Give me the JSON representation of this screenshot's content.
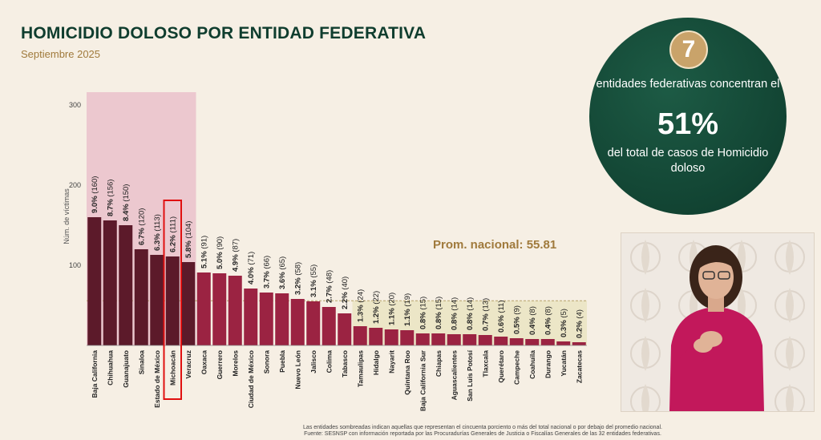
{
  "title": "HOMICIDIO DOLOSO POR ENTIDAD FEDERATIVA",
  "subtitle": "Septiembre 2025",
  "callout": {
    "number": "7",
    "line1": "entidades federativas concentran el",
    "percent": "51%",
    "line2": "del total de casos de Homicidio doloso"
  },
  "footnote": {
    "line1": "Las entidades sombreadas indican aquellas que representan el cincuenta porciento o más del total nacional o por debajo del promedio nacional.",
    "line2": "Fuente: SESNSP con información reportada por las Procuradurías Generales de Justicia o Fiscalías Generales de las 32 entidades federativas."
  },
  "colors": {
    "bar_top": "#5c1a2a",
    "bar": "#9b2342",
    "highlight_top_bg": "#ecc8cf",
    "highlight_low_bg": "#ece6c7",
    "mean_text": "#a07a3c",
    "title": "#0f3d2e",
    "circle_bg": "#0f4333",
    "badge": "#c9a36a"
  },
  "chart_data": {
    "type": "bar",
    "ylabel": "Núm. de víctimas",
    "ylim": [
      0,
      320
    ],
    "yticks": [
      100,
      200,
      300
    ],
    "mean_label": "Prom. nacional: 55.81",
    "mean_value": 55.81,
    "top_group_count": 7,
    "highlighted_category": "Michoacán",
    "categories": [
      "Baja California",
      "Chihuahua",
      "Guanajuato",
      "Sinaloa",
      "Estado de México",
      "Michoacán",
      "Veracruz",
      "Oaxaca",
      "Guerrero",
      "Morelos",
      "Ciudad de México",
      "Sonora",
      "Puebla",
      "Nuevo León",
      "Jalisco",
      "Colima",
      "Tabasco",
      "Tamaulipas",
      "Hidalgo",
      "Nayarit",
      "Quintana Roo",
      "Baja California Sur",
      "Chiapas",
      "Aguascalientes",
      "San Luis Potosí",
      "Tlaxcala",
      "Querétaro",
      "Campeche",
      "Coahuila",
      "Durango",
      "Yucatán",
      "Zacatecas"
    ],
    "values": [
      160,
      156,
      150,
      120,
      113,
      111,
      104,
      91,
      90,
      87,
      71,
      66,
      65,
      58,
      55,
      48,
      40,
      24,
      22,
      20,
      19,
      15,
      15,
      14,
      14,
      13,
      11,
      9,
      8,
      8,
      5,
      4
    ],
    "percents": [
      "9.0%",
      "8.7%",
      "8.4%",
      "6.7%",
      "6.3%",
      "6.2%",
      "5.8%",
      "5.1%",
      "5.0%",
      "4.9%",
      "4.0%",
      "3.7%",
      "3.6%",
      "3.2%",
      "3.1%",
      "2.7%",
      "2.2%",
      "1.3%",
      "1.2%",
      "1.1%",
      "1.1%",
      "0.8%",
      "0.8%",
      "0.8%",
      "0.8%",
      "0.7%",
      "0.6%",
      "0.5%",
      "0.4%",
      "0.4%",
      "0.3%",
      "0.2%"
    ],
    "counts": [
      "(160)",
      "(156)",
      "(150)",
      "(120)",
      "(113)",
      "(111)",
      "(104)",
      "(91)",
      "(90)",
      "(87)",
      "(71)",
      "(66)",
      "(65)",
      "(58)",
      "(55)",
      "(48)",
      "(40)",
      "(24)",
      "(22)",
      "(20)",
      "(19)",
      "(15)",
      "(15)",
      "(14)",
      "(14)",
      "(13)",
      "(11)",
      "(9)",
      "(8)",
      "(8)",
      "(5)",
      "(4)"
    ]
  }
}
